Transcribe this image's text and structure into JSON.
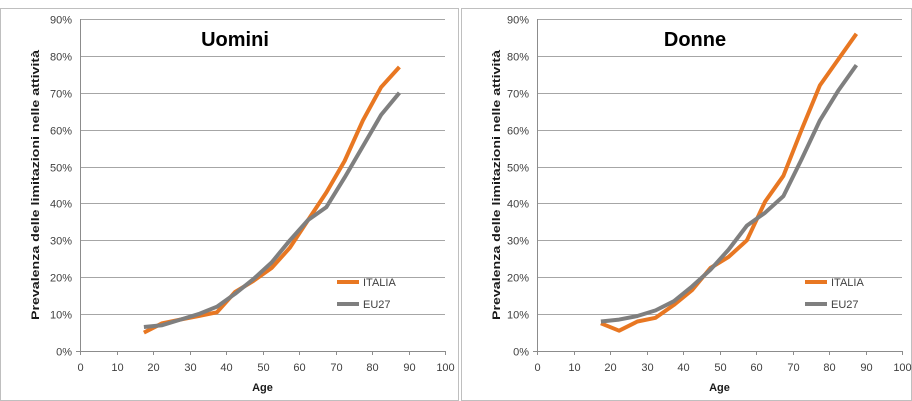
{
  "chart_data": [
    {
      "type": "line",
      "title": "Uomini",
      "xlabel": "Age",
      "ylabel": "Prevalenza delle limitazioni nelle attività",
      "xlim": [
        0,
        100
      ],
      "ylim": [
        0,
        0.9
      ],
      "x_ticks": [
        0,
        10,
        20,
        30,
        40,
        50,
        60,
        70,
        80,
        90,
        100
      ],
      "y_ticks": [
        "0%",
        "10%",
        "20%",
        "30%",
        "40%",
        "50%",
        "60%",
        "70%",
        "80%",
        "90%"
      ],
      "grid": "horizontal",
      "legend_position": "bottom-right",
      "series": [
        {
          "name": "ITALIA",
          "color": "#e87722",
          "x": [
            17.5,
            22.5,
            27.5,
            32.5,
            37.5,
            42.5,
            47.5,
            52.5,
            57.5,
            62.5,
            67.5,
            72.5,
            77.5,
            82.5,
            87.5
          ],
          "y": [
            0.05,
            0.075,
            0.085,
            0.095,
            0.105,
            0.16,
            0.19,
            0.225,
            0.28,
            0.355,
            0.43,
            0.515,
            0.625,
            0.715,
            0.77
          ]
        },
        {
          "name": "EU27",
          "color": "#7f7f7f",
          "x": [
            17.5,
            22.5,
            27.5,
            32.5,
            37.5,
            42.5,
            47.5,
            52.5,
            57.5,
            62.5,
            67.5,
            72.5,
            77.5,
            82.5,
            87.5
          ],
          "y": [
            0.065,
            0.07,
            0.085,
            0.1,
            0.12,
            0.155,
            0.195,
            0.24,
            0.3,
            0.355,
            0.39,
            0.47,
            0.555,
            0.64,
            0.7
          ]
        }
      ]
    },
    {
      "type": "line",
      "title": "Donne",
      "xlabel": "Age",
      "ylabel": "Prevalenza delle limitazioni nelle attività",
      "xlim": [
        0,
        100
      ],
      "ylim": [
        0,
        0.9
      ],
      "x_ticks": [
        0,
        10,
        20,
        30,
        40,
        50,
        60,
        70,
        80,
        90,
        100
      ],
      "y_ticks": [
        "0%",
        "10%",
        "20%",
        "30%",
        "40%",
        "50%",
        "60%",
        "70%",
        "80%",
        "90%"
      ],
      "grid": "horizontal",
      "legend_position": "bottom-right",
      "series": [
        {
          "name": "ITALIA",
          "color": "#e87722",
          "x": [
            17.5,
            22.5,
            27.5,
            32.5,
            37.5,
            42.5,
            47.5,
            52.5,
            57.5,
            62.5,
            67.5,
            72.5,
            77.5,
            82.5,
            87.5
          ],
          "y": [
            0.075,
            0.055,
            0.08,
            0.09,
            0.125,
            0.165,
            0.225,
            0.255,
            0.3,
            0.405,
            0.475,
            0.6,
            0.72,
            0.79,
            0.86
          ]
        },
        {
          "name": "EU27",
          "color": "#7f7f7f",
          "x": [
            17.5,
            22.5,
            27.5,
            32.5,
            37.5,
            42.5,
            47.5,
            52.5,
            57.5,
            62.5,
            67.5,
            72.5,
            77.5,
            82.5,
            87.5
          ],
          "y": [
            0.08,
            0.085,
            0.095,
            0.11,
            0.135,
            0.175,
            0.22,
            0.275,
            0.34,
            0.375,
            0.42,
            0.52,
            0.625,
            0.705,
            0.775
          ]
        }
      ]
    }
  ]
}
